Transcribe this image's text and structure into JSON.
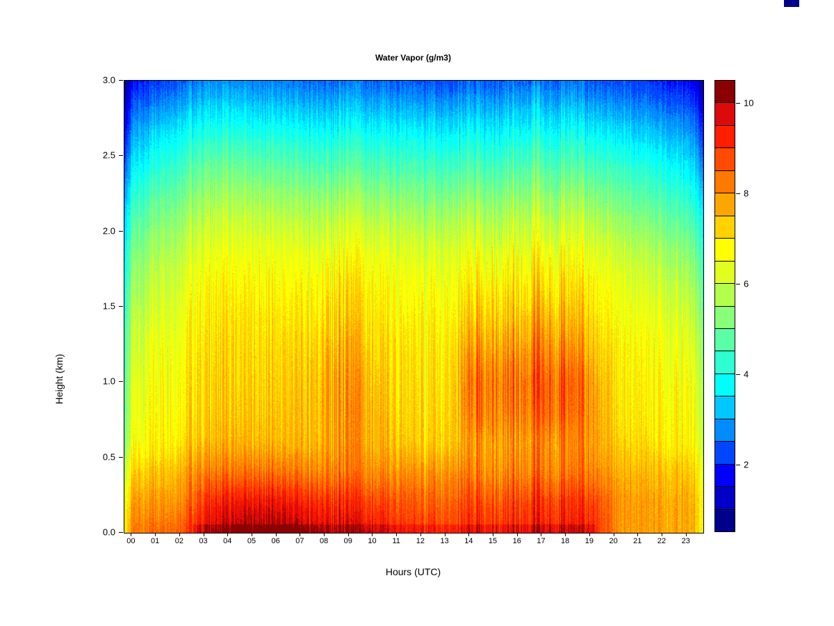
{
  "page": {
    "background": "#ffffff"
  },
  "chart_data": {
    "type": "heatmap",
    "title": "Water Vapor (g/m3)",
    "xlabel": "Hours (UTC)",
    "ylabel": "Height (km)",
    "x_ticks": [
      "00",
      "01",
      "02",
      "03",
      "04",
      "05",
      "06",
      "07",
      "08",
      "09",
      "10",
      "11",
      "12",
      "13",
      "14",
      "15",
      "16",
      "17",
      "18",
      "19",
      "20",
      "21",
      "22",
      "23"
    ],
    "y_ticks": [
      "0.0",
      "0.5",
      "1.0",
      "1.5",
      "2.0",
      "2.5",
      "3.0"
    ],
    "x_range": [
      0,
      24
    ],
    "y_range": [
      0,
      3.0
    ],
    "value_range": [
      0.5,
      10.5
    ],
    "colorbar_ticks": [
      2,
      4,
      6,
      8,
      10
    ],
    "legend_position": "right",
    "grid": false,
    "colorscale": [
      "#00008B",
      "#0000C8",
      "#0000FF",
      "#0046FF",
      "#008CFF",
      "#00C8FF",
      "#00FFFF",
      "#2DFFD2",
      "#5AFFA5",
      "#87FF78",
      "#B4FF4B",
      "#E1FF1E",
      "#FFFF00",
      "#FFD200",
      "#FFA500",
      "#FF7800",
      "#FF4B00",
      "#FF1E00",
      "#DC0A0A",
      "#8B0000"
    ],
    "hours": [
      0,
      1,
      2,
      3,
      4,
      5,
      6,
      7,
      8,
      9,
      10,
      11,
      12,
      13,
      14,
      15,
      16,
      17,
      18,
      19,
      20,
      21,
      22,
      23
    ],
    "heights": [
      0.0,
      0.2,
      0.4,
      0.6,
      0.8,
      1.0,
      1.2,
      1.4,
      1.6,
      1.8,
      2.0,
      2.2,
      2.4,
      2.6,
      2.8,
      3.0
    ],
    "values": [
      [
        8.2,
        8.5,
        8.8,
        9.8,
        10.0,
        10.2,
        10.2,
        10.0,
        9.8,
        9.6,
        9.5,
        9.0,
        9.0,
        8.8,
        9.2,
        9.2,
        9.3,
        9.4,
        9.4,
        9.2,
        7.9,
        7.8,
        7.8,
        7.6
      ],
      [
        7.8,
        8.0,
        8.2,
        9.2,
        9.4,
        9.5,
        9.5,
        9.3,
        9.2,
        9.0,
        8.8,
        8.6,
        8.5,
        8.4,
        8.8,
        8.8,
        8.9,
        9.0,
        9.0,
        8.8,
        7.9,
        7.8,
        7.8,
        7.6
      ],
      [
        7.2,
        7.5,
        7.8,
        8.2,
        8.2,
        8.3,
        8.3,
        8.2,
        8.2,
        8.1,
        8.0,
        7.9,
        7.9,
        7.9,
        8.1,
        8.1,
        8.2,
        8.2,
        8.2,
        8.1,
        7.6,
        7.5,
        7.5,
        7.3
      ],
      [
        6.5,
        7.0,
        7.2,
        7.5,
        7.5,
        7.5,
        7.5,
        7.5,
        7.8,
        7.8,
        7.6,
        7.3,
        7.2,
        7.2,
        7.8,
        7.9,
        7.9,
        8.0,
        8.0,
        7.8,
        7.2,
        7.1,
        7.0,
        6.8
      ],
      [
        6.3,
        6.9,
        7.0,
        7.3,
        7.3,
        7.3,
        7.4,
        7.4,
        7.8,
        7.8,
        7.5,
        7.2,
        7.1,
        7.1,
        8.2,
        8.3,
        8.3,
        8.5,
        8.4,
        7.8,
        7.0,
        6.9,
        6.9,
        6.6
      ],
      [
        6.2,
        6.8,
        6.9,
        7.2,
        7.2,
        7.2,
        7.3,
        7.3,
        7.8,
        7.7,
        7.4,
        7.1,
        7.0,
        7.0,
        8.3,
        8.4,
        8.4,
        8.6,
        8.5,
        7.7,
        6.9,
        6.8,
        6.8,
        6.5
      ],
      [
        6.0,
        6.6,
        6.8,
        7.1,
        7.1,
        7.1,
        7.2,
        7.2,
        7.6,
        7.5,
        7.2,
        7.0,
        6.9,
        6.9,
        7.9,
        8.0,
        8.0,
        8.2,
        8.0,
        7.4,
        6.8,
        6.7,
        6.6,
        6.3
      ],
      [
        5.8,
        6.4,
        6.6,
        7.0,
        7.0,
        7.0,
        7.0,
        7.0,
        7.3,
        7.2,
        7.0,
        6.8,
        6.8,
        6.7,
        7.4,
        7.5,
        7.5,
        7.7,
        7.5,
        7.1,
        6.6,
        6.5,
        6.4,
        6.0
      ],
      [
        5.5,
        6.2,
        6.4,
        6.8,
        6.8,
        6.8,
        6.8,
        6.8,
        7.0,
        7.0,
        6.8,
        6.6,
        6.6,
        6.5,
        7.0,
        7.1,
        7.1,
        7.2,
        7.1,
        6.8,
        6.4,
        6.2,
        6.1,
        5.7
      ],
      [
        5.2,
        5.9,
        6.1,
        6.5,
        6.5,
        6.5,
        6.5,
        6.5,
        6.6,
        6.6,
        6.5,
        6.3,
        6.3,
        6.2,
        6.5,
        6.6,
        6.6,
        6.7,
        6.6,
        6.4,
        6.1,
        5.9,
        5.7,
        5.3
      ],
      [
        4.8,
        5.5,
        5.7,
        6.1,
        6.1,
        6.1,
        6.1,
        6.0,
        6.1,
        6.1,
        6.0,
        5.9,
        5.8,
        5.8,
        6.0,
        6.0,
        6.1,
        6.1,
        6.1,
        5.9,
        5.6,
        5.4,
        5.2,
        4.8
      ],
      [
        4.3,
        5.0,
        5.2,
        5.6,
        5.6,
        5.6,
        5.5,
        5.5,
        5.5,
        5.5,
        5.4,
        5.3,
        5.2,
        5.2,
        5.4,
        5.4,
        5.5,
        5.5,
        5.5,
        5.3,
        5.0,
        4.8,
        4.6,
        4.2
      ],
      [
        3.7,
        4.4,
        4.6,
        5.0,
        5.0,
        4.9,
        4.9,
        4.8,
        4.8,
        4.8,
        4.7,
        4.6,
        4.6,
        4.5,
        4.7,
        4.7,
        4.8,
        4.8,
        4.8,
        4.6,
        4.4,
        4.2,
        4.0,
        3.6
      ],
      [
        3.1,
        3.8,
        4.0,
        4.3,
        4.3,
        4.2,
        4.2,
        4.1,
        4.1,
        4.1,
        4.0,
        3.9,
        3.9,
        3.8,
        4.0,
        4.0,
        4.1,
        4.1,
        4.1,
        3.9,
        3.7,
        3.5,
        3.3,
        3.0
      ],
      [
        2.5,
        3.0,
        3.2,
        3.5,
        3.5,
        3.4,
        3.4,
        3.3,
        3.3,
        3.3,
        3.2,
        3.1,
        3.1,
        3.0,
        3.2,
        3.2,
        3.3,
        3.3,
        3.3,
        3.1,
        2.9,
        2.8,
        2.6,
        2.4
      ],
      [
        1.8,
        2.2,
        2.4,
        2.7,
        2.7,
        2.6,
        2.6,
        2.5,
        2.5,
        2.5,
        2.4,
        2.3,
        2.3,
        2.2,
        2.4,
        2.4,
        2.5,
        2.5,
        2.5,
        2.3,
        2.2,
        2.1,
        1.9,
        1.7
      ]
    ]
  },
  "decorations": {
    "corner_swatch_color": "#00008B"
  }
}
